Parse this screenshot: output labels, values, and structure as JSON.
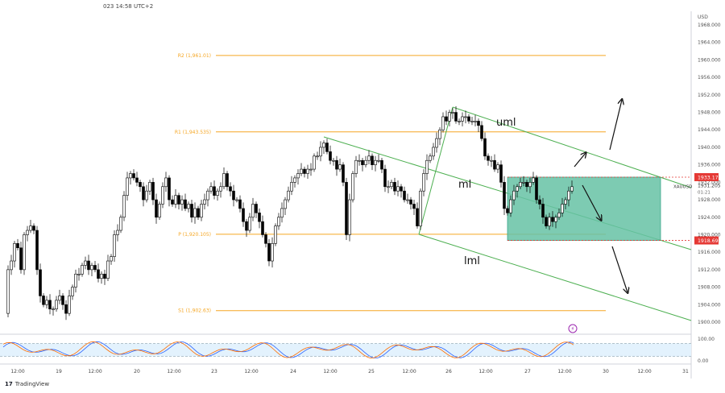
{
  "header": {
    "datetime": "023 14:58 UTC+2"
  },
  "brand": {
    "name": "TradingView",
    "logo_glyph": "17"
  },
  "price_axis": {
    "currency": "USD",
    "labels": [
      "1968.000",
      "1964.000",
      "1960.000",
      "1956.000",
      "1952.000",
      "1948.000",
      "1944.000",
      "1940.000",
      "1936.000",
      "1932.000",
      "1928.000",
      "1924.000",
      "1920.000",
      "1916.000",
      "1912.000",
      "1908.000",
      "1904.000",
      "1900.000"
    ],
    "ymin": 1898,
    "ymax": 1970,
    "badges": {
      "upper": {
        "value": "1933.175",
        "color": "#e53935"
      },
      "current": {
        "value": "1931.205",
        "symbol": "XAUUSD",
        "countdown": "01:21"
      },
      "lower": {
        "value": "1918.695",
        "color": "#e53935"
      }
    }
  },
  "time_axis": {
    "labels": [
      "12:00",
      "19",
      "12:00",
      "20",
      "12:00",
      "23",
      "12:00",
      "24",
      "12:00",
      "25",
      "12:00",
      "26",
      "12:00",
      "27",
      "12:00",
      "30",
      "12:00",
      "31"
    ]
  },
  "pivots": [
    {
      "label": "R2 (1,961.01)",
      "value": 1961.01
    },
    {
      "label": "R1 (1,943.535)",
      "value": 1943.535
    },
    {
      "label": "P (1,920.105)",
      "value": 1920.105
    },
    {
      "label": "S1 (1,902.63)",
      "value": 1902.63
    }
  ],
  "channel_labels": {
    "upper": "uml",
    "median": "ml",
    "lower": "lml"
  },
  "oscillator": {
    "labels": [
      "100.00",
      "0.00"
    ],
    "levels": [
      80,
      20
    ]
  },
  "colors": {
    "pivot": "#f5a623",
    "channel": "#4caf50",
    "box_fill": "#66c2a5",
    "badge_red": "#e53935",
    "candle": "#000000",
    "osc_blue": "#2962ff",
    "osc_orange": "#ff6d00"
  }
}
